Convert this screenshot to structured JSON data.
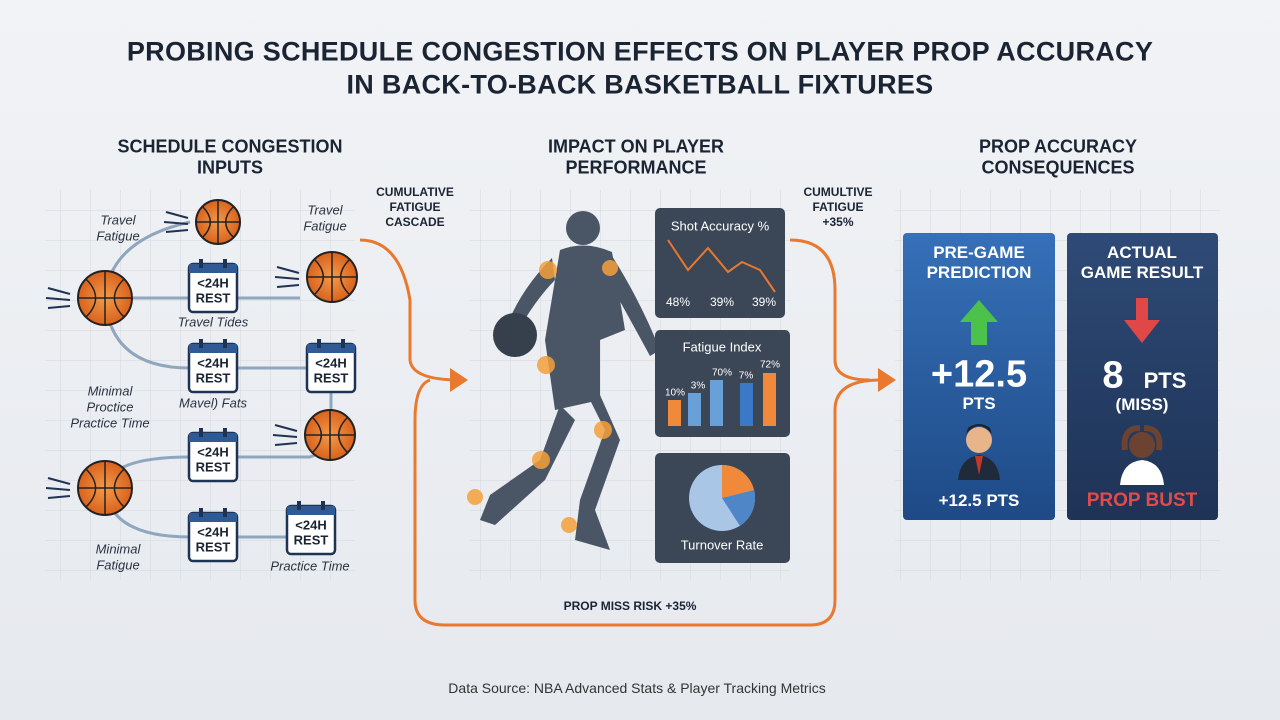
{
  "header": {
    "title": [
      "PROBING SCHEDULE CONGESTION EFFECTS ON PLAYER PROP ACCURACY",
      "IN BACK-TO-BACK BASKETBALL FIXTURES"
    ]
  },
  "columns": [
    {
      "heading": [
        "SCHEDULE CONGESTION",
        "INPUTS"
      ]
    },
    {
      "heading": [
        "IMPACT ON PLAYER",
        "PERFORMANCE"
      ]
    },
    {
      "heading": [
        "PROP ACCURACY",
        "CONSEQUENCES"
      ]
    }
  ],
  "inputs": {
    "labels": [
      [
        "Travel",
        "Fatigue"
      ],
      [
        "Travel",
        "Fatigue"
      ],
      [
        "Travel Tides"
      ],
      [
        "Minimal",
        "Proctice",
        "Practice Time"
      ],
      [
        "Mavel) Fats"
      ],
      [
        "Minimal",
        "Fatigue"
      ],
      [
        "Practice Time"
      ]
    ],
    "rest": [
      [
        "<24H",
        "REST"
      ],
      [
        "<24H",
        "REST"
      ],
      [
        "<24H",
        "REST"
      ],
      [
        "<24H",
        "REST"
      ],
      [
        "<24H",
        "REST"
      ],
      [
        "<24H",
        "REST"
      ]
    ]
  },
  "connectors": {
    "left": [
      "CUMULATIVE",
      "FATIGUE",
      "CASCADE"
    ],
    "right": [
      "CUMULTIVE",
      "FATIGUE",
      "+35%"
    ],
    "bottom": "PROP MISS RISK +35%"
  },
  "panels": [
    {
      "title": "Shot Accuracy %",
      "labels": [
        "48%",
        "39%",
        "39%"
      ]
    },
    {
      "title": "Fatigue Index",
      "labels": [
        "10%",
        "3%",
        "70%",
        "7%",
        "72%"
      ]
    },
    {
      "title": "Turnover Rate"
    }
  ],
  "cards": [
    {
      "heading": [
        "PRE-GAME",
        "PREDICTION"
      ],
      "value": "+12.5",
      "unit": "PTS",
      "footer": "+12.5 PTS"
    },
    {
      "heading": [
        "ACTUAL",
        "GAME RESULT"
      ],
      "value": "8",
      "unit": "PTS",
      "note": "(MISS)",
      "footer": "PROP BUST"
    }
  ],
  "footer": "Data Source: NBA Advanced Stats & Player Tracking Metrics"
}
